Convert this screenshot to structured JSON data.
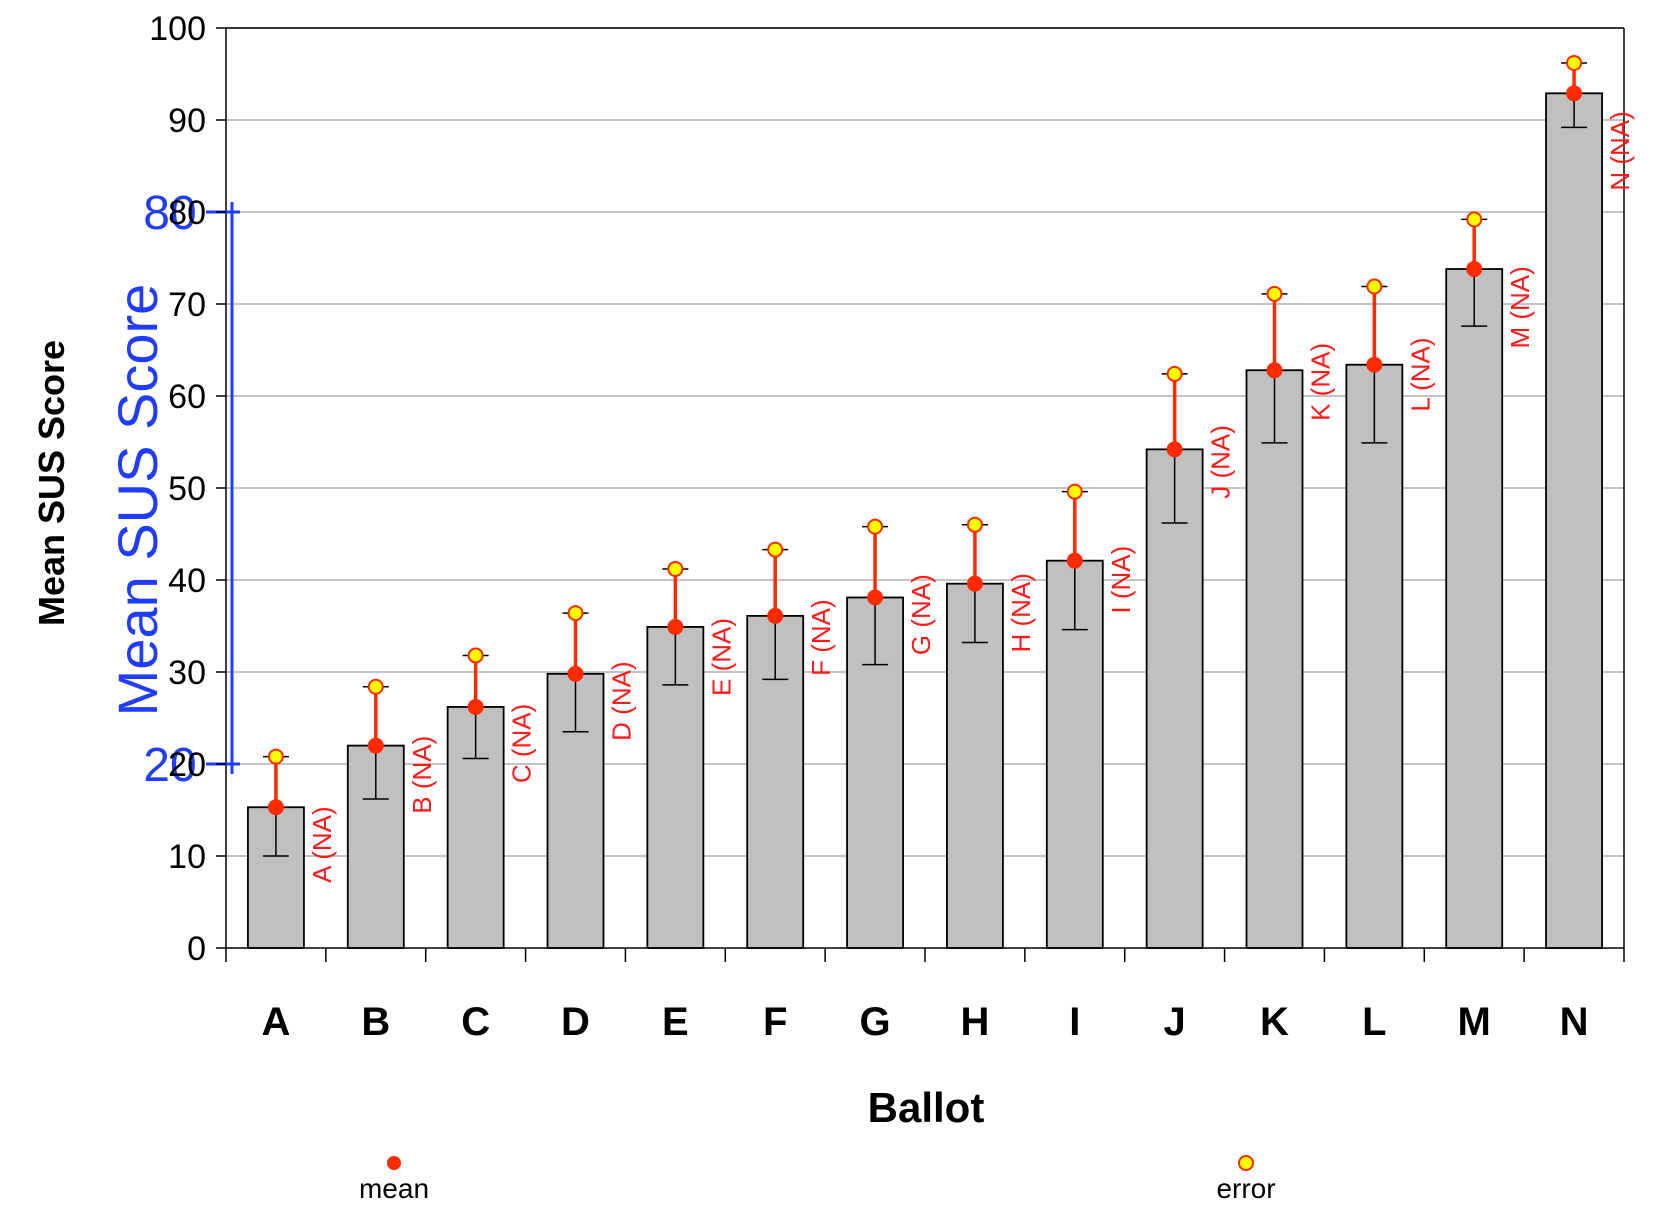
{
  "chart_data": {
    "type": "bar",
    "categories": [
      "A",
      "B",
      "C",
      "D",
      "E",
      "F",
      "G",
      "H",
      "I",
      "J",
      "K",
      "L",
      "M",
      "N"
    ],
    "values": [
      15.3,
      22.0,
      26.2,
      29.8,
      34.9,
      36.1,
      38.1,
      39.6,
      42.1,
      54.2,
      62.8,
      63.4,
      73.8,
      92.9
    ],
    "error_low": [
      10.0,
      16.2,
      20.6,
      23.5,
      28.6,
      29.2,
      30.8,
      33.2,
      34.6,
      46.2,
      54.9,
      54.9,
      67.6,
      89.2
    ],
    "error_high": [
      20.8,
      28.4,
      31.8,
      36.4,
      41.2,
      43.3,
      45.8,
      46.0,
      49.6,
      62.4,
      71.1,
      71.9,
      79.2,
      96.2
    ],
    "point_labels": [
      "A (NA)",
      "B (NA)",
      "C (NA)",
      "D (NA)",
      "E (NA)",
      "F (NA)",
      "G (NA)",
      "H (NA)",
      "I (NA)",
      "J (NA)",
      "K (NA)",
      "L (NA)",
      "M (NA)",
      "N (NA)"
    ],
    "xlabel": "Ballot",
    "ylabel": "Mean SUS Score",
    "ylim": [
      0,
      100
    ],
    "yticks": [
      "0",
      "10",
      "20",
      "30",
      "40",
      "50",
      "60",
      "70",
      "80",
      "90",
      "100"
    ],
    "grid": true,
    "bar_color": "#c0c0c0",
    "mean_color": "#ff2a00",
    "error_marker_color": "#ffff00",
    "overlay": {
      "title": "Mean SUS Score",
      "tick_labels": [
        "20",
        "80"
      ],
      "tick_values": [
        20,
        80
      ],
      "color": "#1f3cff"
    },
    "legend": {
      "position": "bottom",
      "items": [
        {
          "label": "mean",
          "marker": "filled-red-circle"
        },
        {
          "label": "error",
          "marker": "yellow-circle-red-outline"
        }
      ]
    }
  }
}
